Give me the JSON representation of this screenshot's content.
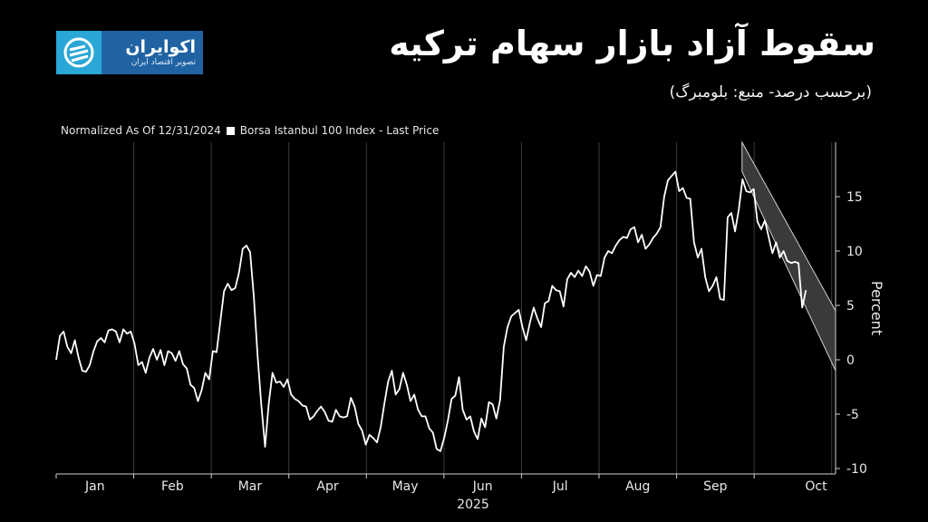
{
  "brand": {
    "name": "اکوایران",
    "tagline": "تصویر اقتصاد ایران"
  },
  "header": {
    "title": "سقوط آزاد بازار سهام ترکیه",
    "subtitle": "(برحسب درصد- منبع: بلومبرگ)"
  },
  "legend": {
    "normalized": "Normalized As Of 12/31/2024",
    "series": "Borsa Istanbul 100 Index - Last Price"
  },
  "colors": {
    "background": "#000000",
    "line": "#ffffff",
    "channel_fill": "#3a3a3a",
    "grid": "#3c3c3c"
  },
  "chart_data": {
    "type": "line",
    "ylabel": "Percent",
    "year_label": "2025",
    "ylim": [
      -10.5,
      20
    ],
    "yticks": [
      -10,
      -5,
      0,
      5,
      10,
      15
    ],
    "month_labels": [
      "Jan",
      "Feb",
      "Mar",
      "Apr",
      "May",
      "Jun",
      "Jul",
      "Aug",
      "Sep",
      "Oct"
    ],
    "grid": "vertical",
    "series": [
      {
        "values": [
          0,
          2.2,
          2.6,
          1.2,
          0.6,
          1.8,
          0.2,
          -1,
          -1.1,
          -0.5,
          0.8,
          1.7,
          2.0,
          1.6,
          2.7,
          2.8,
          2.6,
          1.6,
          2.8,
          2.4,
          2.6,
          1.5,
          -0.5,
          -0.2,
          -1.2,
          0.2,
          1.0,
          0.0,
          0.9,
          -0.5,
          0.8,
          0.6,
          -0.1,
          0.8,
          -0.4,
          -0.8,
          -2.3,
          -2.6,
          -3.8,
          -2.8,
          -1.2,
          -1.8,
          0.8,
          0.7,
          3.5,
          6.3,
          7.0,
          6.4,
          6.6,
          8.0,
          10.2,
          10.5,
          9.9,
          5.8,
          0.3,
          -4.2,
          -8.0,
          -4.0,
          -1.2,
          -2.1,
          -2.0,
          -2.5,
          -1.8,
          -3.2,
          -3.6,
          -3.8,
          -4.2,
          -4.3,
          -5.5,
          -5.2,
          -4.7,
          -4.3,
          -4.8,
          -5.6,
          -5.7,
          -4.6,
          -5.2,
          -5.3,
          -5.2,
          -3.5,
          -4.3,
          -5.9,
          -6.5,
          -7.8,
          -6.9,
          -7.2,
          -7.6,
          -6.2,
          -4.0,
          -2.0,
          -1.0,
          -3.2,
          -2.7,
          -1.2,
          -2.3,
          -3.8,
          -3.2,
          -4.6,
          -5.2,
          -5.2,
          -6.3,
          -6.7,
          -8.2,
          -8.4,
          -7.2,
          -5.6,
          -3.6,
          -3.3,
          -1.6,
          -4.6,
          -5.5,
          -5.2,
          -6.6,
          -7.3,
          -5.4,
          -6.2,
          -3.9,
          -4.1,
          -5.4,
          -3.7,
          1.2,
          3.0,
          4.0,
          4.3,
          4.6,
          3.0,
          1.8,
          3.4,
          4.8,
          3.8,
          3.0,
          5.2,
          5.4,
          6.8,
          6.4,
          6.3,
          4.9,
          7.4,
          8.0,
          7.6,
          8.2,
          7.7,
          8.6,
          8.1,
          6.8,
          7.8,
          7.7,
          9.4,
          10.0,
          9.8,
          10.5,
          11.0,
          11.3,
          11.2,
          12.0,
          12.2,
          10.8,
          11.5,
          10.2,
          10.6,
          11.2,
          11.6,
          12.2,
          15.0,
          16.5,
          16.9,
          17.3,
          15.5,
          15.8,
          14.9,
          14.8,
          10.8,
          9.4,
          10.2,
          7.6,
          6.3,
          6.8,
          7.6,
          5.6,
          5.5,
          13.1,
          13.5,
          11.8,
          13.8,
          16.6,
          15.5,
          15.4,
          15.7,
          12.7,
          12.0,
          12.8,
          11.3,
          9.8,
          10.8,
          9.4,
          10.0,
          9.1,
          8.9,
          9.0,
          8.9,
          4.8,
          6.4
        ]
      }
    ],
    "channel": {
      "x_start": 0.88,
      "x_end": 1.0,
      "upper_start": 20.0,
      "upper_end": 4.5,
      "lower_start": 17.3,
      "lower_end": -1.0
    }
  }
}
